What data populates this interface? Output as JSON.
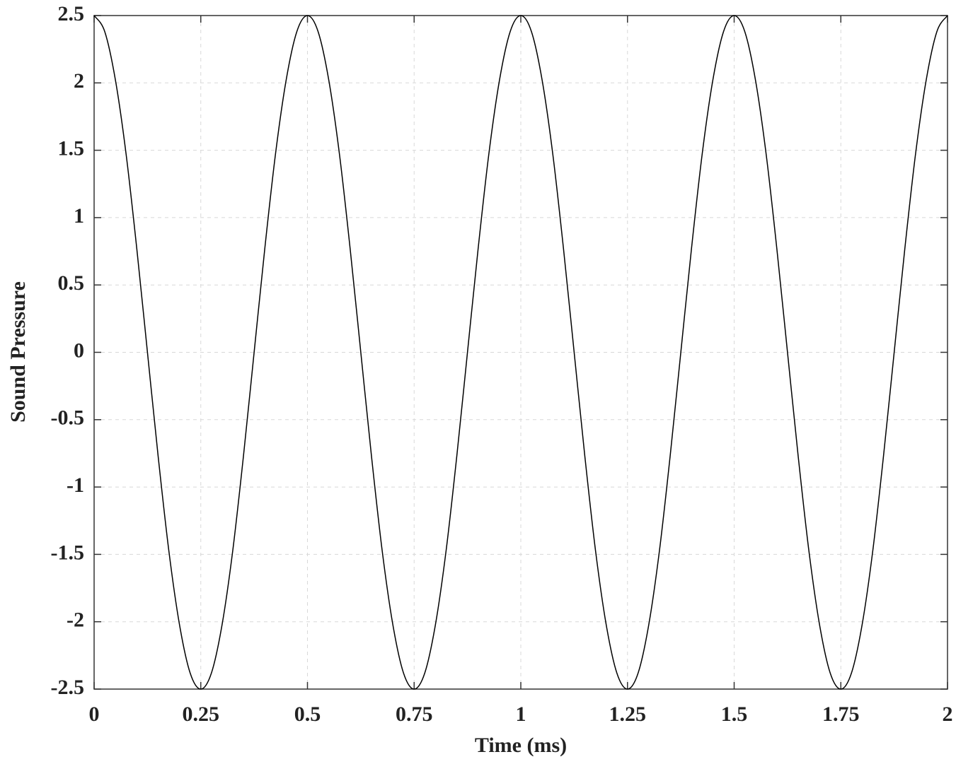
{
  "chart_data": {
    "type": "line",
    "xlabel": "Time (ms)",
    "ylabel": "Sound Pressure",
    "x": [
      0,
      0.025,
      0.05,
      0.075,
      0.1,
      0.125,
      0.15,
      0.175,
      0.2,
      0.225,
      0.25,
      0.275,
      0.3,
      0.325,
      0.35,
      0.375,
      0.4,
      0.425,
      0.45,
      0.475,
      0.5,
      0.525,
      0.55,
      0.575,
      0.6,
      0.625,
      0.65,
      0.675,
      0.7,
      0.725,
      0.75,
      0.775,
      0.8,
      0.825,
      0.85,
      0.875,
      0.9,
      0.925,
      0.95,
      0.975,
      1,
      1.025,
      1.05,
      1.075,
      1.1,
      1.125,
      1.15,
      1.175,
      1.2,
      1.225,
      1.25,
      1.275,
      1.3,
      1.325,
      1.35,
      1.375,
      1.4,
      1.425,
      1.45,
      1.475,
      1.5,
      1.525,
      1.55,
      1.575,
      1.6,
      1.625,
      1.65,
      1.675,
      1.7,
      1.725,
      1.75,
      1.775,
      1.8,
      1.825,
      1.85,
      1.875,
      1.9,
      1.925,
      1.95,
      1.975,
      2
    ],
    "values": [
      2.5,
      2.38,
      2.02,
      1.47,
      0.77,
      0,
      -0.77,
      -1.47,
      -2.02,
      -2.38,
      -2.5,
      -2.38,
      -2.02,
      -1.47,
      -0.77,
      0,
      0.77,
      1.47,
      2.02,
      2.38,
      2.5,
      2.38,
      2.02,
      1.47,
      0.77,
      0,
      -0.77,
      -1.47,
      -2.02,
      -2.38,
      -2.5,
      -2.38,
      -2.02,
      -1.47,
      -0.77,
      0,
      0.77,
      1.47,
      2.02,
      2.38,
      2.5,
      2.38,
      2.02,
      1.47,
      0.77,
      0,
      -0.77,
      -1.47,
      -2.02,
      -2.38,
      -2.5,
      -2.38,
      -2.02,
      -1.47,
      -0.77,
      0,
      0.77,
      1.47,
      2.02,
      2.38,
      2.5,
      2.38,
      2.02,
      1.47,
      0.77,
      0,
      -0.77,
      -1.47,
      -2.02,
      -2.38,
      -2.5,
      -2.38,
      -2.02,
      -1.47,
      -0.77,
      0,
      0.77,
      1.47,
      2.02,
      2.38,
      2.5
    ],
    "color": "#000000",
    "xlim": [
      0,
      2
    ],
    "xticks": [
      0,
      0.25,
      0.5,
      0.75,
      1,
      1.25,
      1.5,
      1.75,
      2
    ],
    "ylim": [
      -2.5,
      2.5
    ],
    "yticks": [
      -2.5,
      -2,
      -1.5,
      -1,
      -0.5,
      0,
      0.5,
      1,
      1.5,
      2,
      2.5
    ],
    "grid": true
  }
}
